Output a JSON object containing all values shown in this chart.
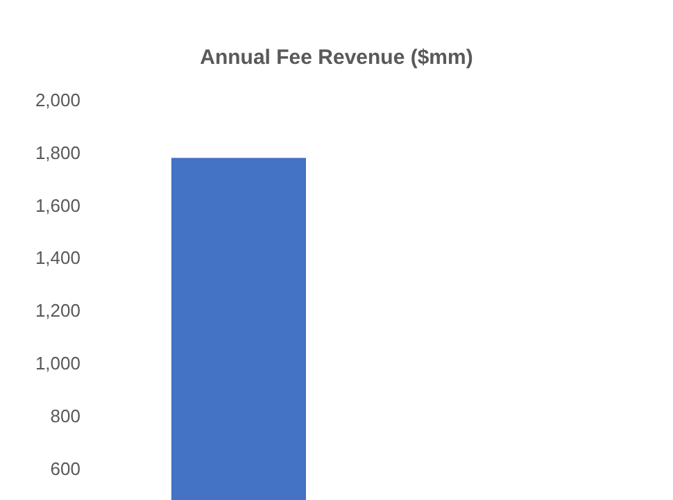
{
  "chart_data": {
    "type": "bar",
    "title": "Annual Fee Revenue ($mm)",
    "categories": [
      null
    ],
    "values": [
      1780
    ],
    "color": "#4472c4",
    "ylim": [
      480,
      2000
    ],
    "yticks": [
      {
        "value": 600,
        "label": "600"
      },
      {
        "value": 800,
        "label": "800"
      },
      {
        "value": 1000,
        "label": "1,000"
      },
      {
        "value": 1200,
        "label": "1,200"
      },
      {
        "value": 1400,
        "label": "1,400"
      },
      {
        "value": 1600,
        "label": "1,600"
      },
      {
        "value": 1800,
        "label": "1,800"
      },
      {
        "value": 2000,
        "label": "2,000"
      }
    ],
    "grid": false
  }
}
